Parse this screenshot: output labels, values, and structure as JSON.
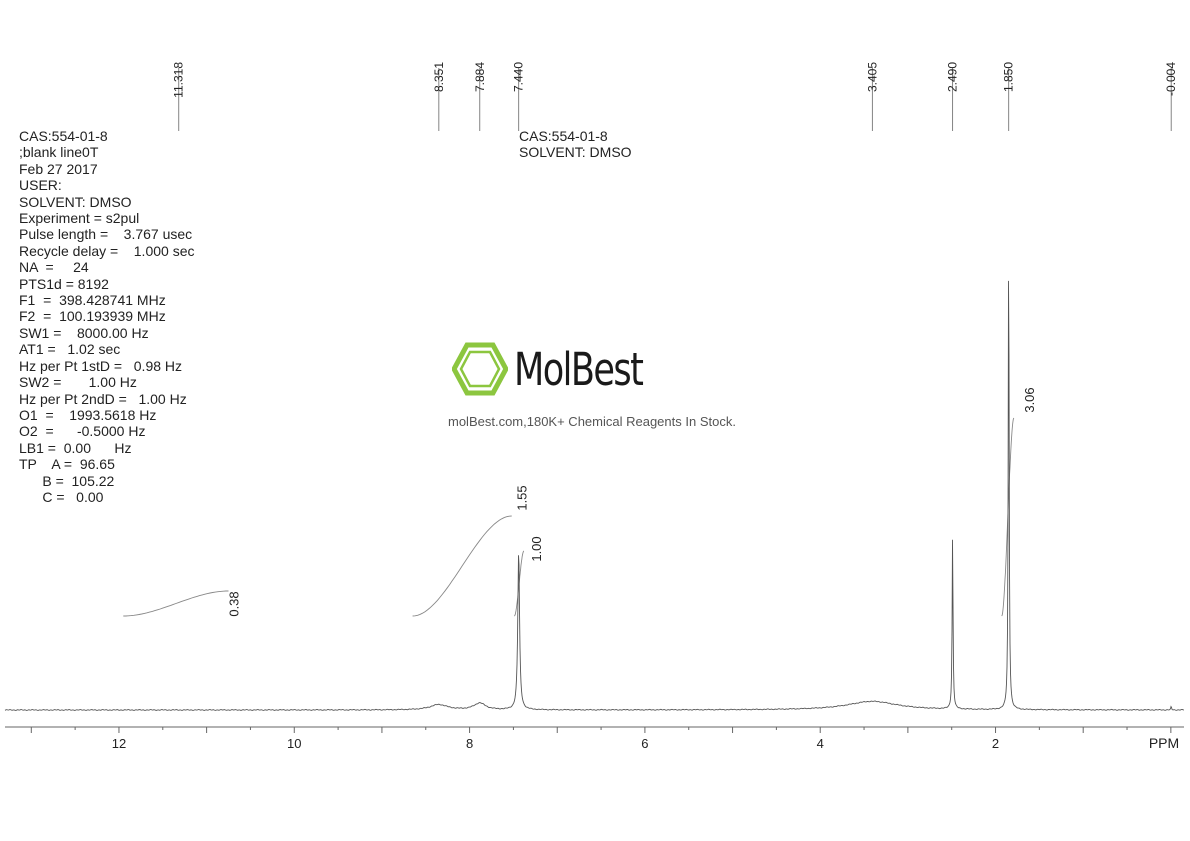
{
  "params_block": {
    "lines": [
      "CAS:554-01-8",
      ";blank line0T",
      "Feb 27 2017",
      "USER:",
      "SOLVENT: DMSO",
      "Experiment = s2pul",
      "Pulse length =    3.767 usec",
      "Recycle delay =    1.000 sec",
      "NA  =     24",
      "PTS1d = 8192",
      "F1  =  398.428741 MHz",
      "F2  =  100.193939 MHz",
      "SW1 =    8000.00 Hz",
      "AT1 =   1.02 sec",
      "Hz per Pt 1stD =   0.98 Hz",
      "SW2 =       1.00 Hz",
      "Hz per Pt 2ndD =   1.00 Hz",
      "O1  =    1993.5618 Hz",
      "O2  =      -0.5000 Hz",
      "LB1 =  0.00      Hz",
      "TP    A =  96.65",
      "      B =  105.22",
      "      C =   0.00"
    ]
  },
  "sample_box": {
    "cas": "CAS:554-01-8",
    "solvent": "SOLVENT: DMSO"
  },
  "watermark": {
    "brand": "MolBest",
    "tagline": "molBest.com,180K+ Chemical Reagents In Stock.",
    "accent_color": "#8cc63f",
    "icon": "benzene-ring-icon"
  },
  "chart_data": {
    "type": "line",
    "title": "",
    "xlabel": "PPM",
    "ylabel": "",
    "x_reversed": true,
    "xlim": [
      13.3,
      -0.15
    ],
    "x_ticks": [
      12,
      10,
      8,
      6,
      4,
      2
    ],
    "x_tick_labels": [
      "12",
      "10",
      "8",
      "6",
      "4",
      "2"
    ],
    "peak_labels": [
      "11.318",
      "8.351",
      "7.884",
      "7.440",
      "3.405",
      "2.490",
      "1.850",
      "-0.004"
    ],
    "peaks": [
      {
        "ppm": 11.318,
        "height": 0.0,
        "width": 0.8
      },
      {
        "ppm": 8.351,
        "height": 0.011,
        "width": 0.12
      },
      {
        "ppm": 7.884,
        "height": 0.014,
        "width": 0.08
      },
      {
        "ppm": 7.44,
        "height": 0.33,
        "width": 0.012
      },
      {
        "ppm": 3.405,
        "height": 0.018,
        "width": 0.35
      },
      {
        "ppm": 2.49,
        "height": 0.36,
        "width": 0.006
      },
      {
        "ppm": 1.85,
        "height": 1.0,
        "width": 0.006
      },
      {
        "ppm": -0.004,
        "height": 0.008,
        "width": 0.004
      }
    ],
    "integrals": [
      {
        "label": "0.38",
        "from_ppm": 11.95,
        "to_ppm": 10.75
      },
      {
        "label": "1.55",
        "from_ppm": 8.65,
        "to_ppm": 7.52
      },
      {
        "label": "1.00",
        "from_ppm": 7.49,
        "to_ppm": 7.38
      },
      {
        "label": "3.06",
        "from_ppm": 1.93,
        "to_ppm": 1.79
      }
    ],
    "grid": false,
    "line_color": "#555555"
  }
}
